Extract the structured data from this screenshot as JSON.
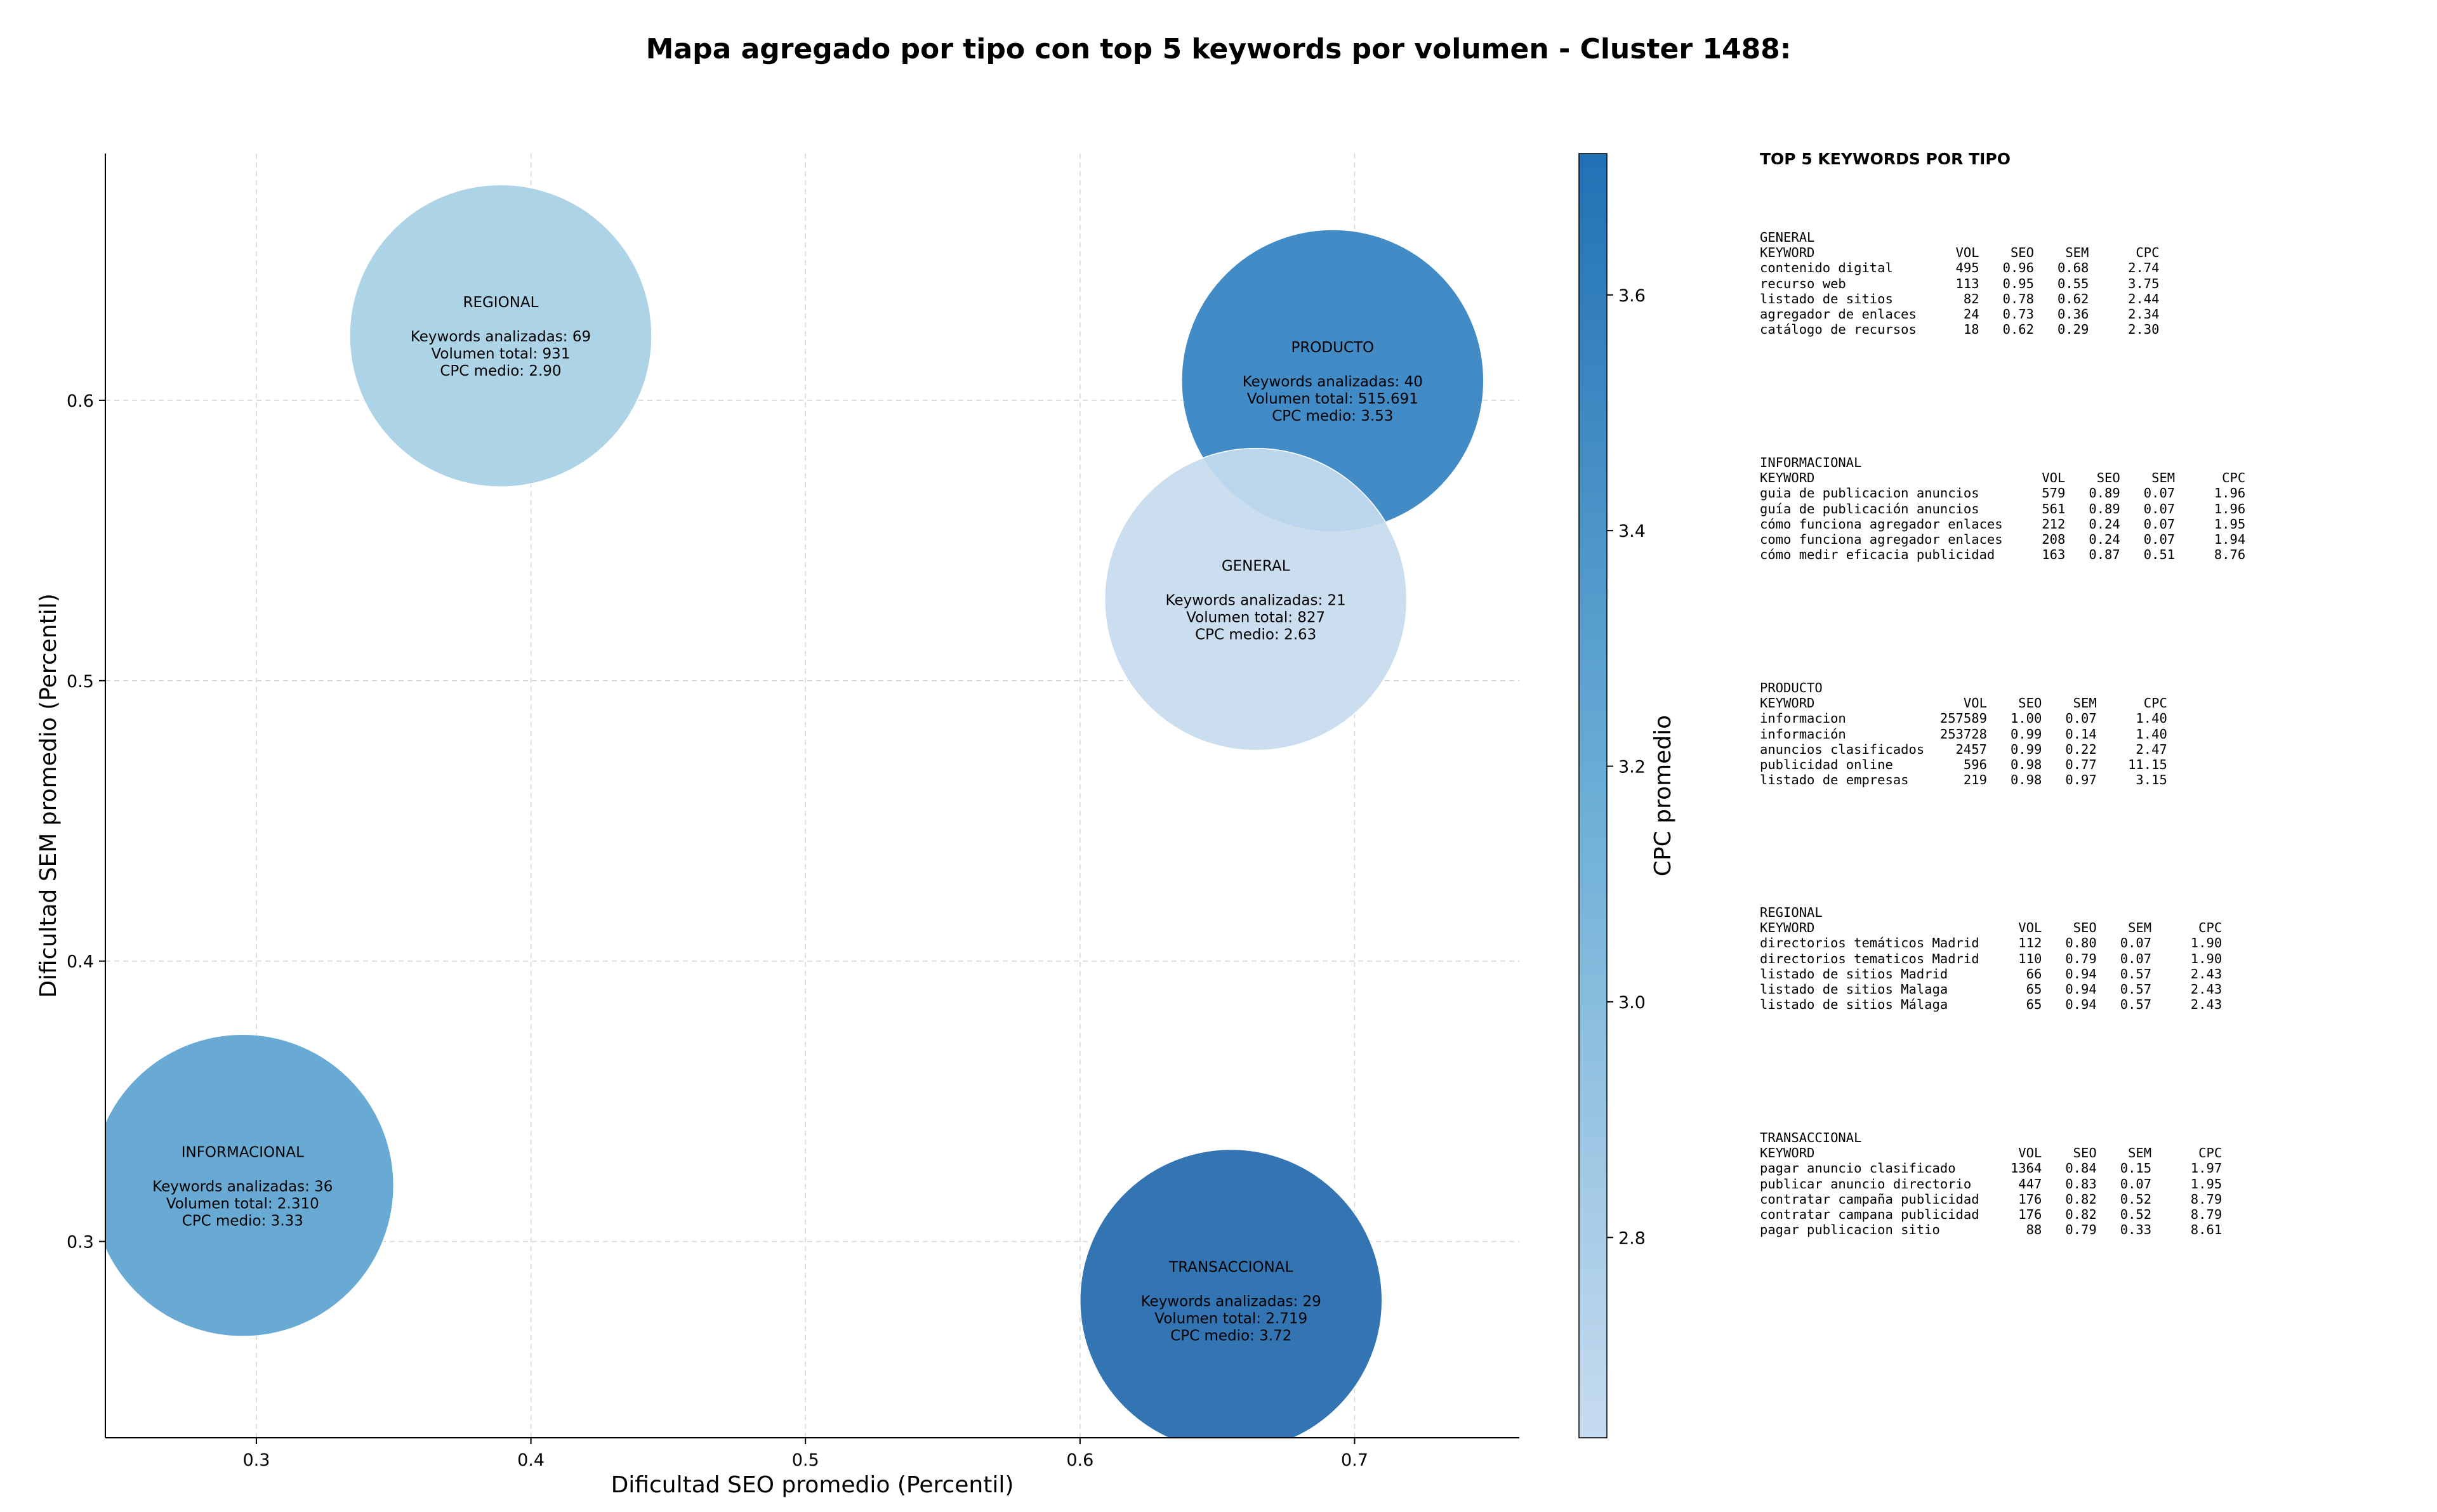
{
  "chart_data": {
    "type": "scatter",
    "title": "Mapa agregado por tipo con top 5 keywords por volumen - Cluster 1488:",
    "xlabel": "Dificultad SEO promedio (Percentil)",
    "ylabel": "Dificultad SEM promedio (Percentil)",
    "xlim": [
      0.245,
      0.76
    ],
    "ylim": [
      0.23,
      0.688
    ],
    "xticks": [
      "0.3",
      "0.4",
      "0.5",
      "0.6",
      "0.7"
    ],
    "yticks": [
      "0.3",
      "0.4",
      "0.5",
      "0.6"
    ],
    "grid": true,
    "colorbar": {
      "label": "CPC promedio",
      "range": [
        2.63,
        3.72
      ],
      "ticks": [
        "2.8",
        "3.0",
        "3.2",
        "3.4",
        "3.6"
      ],
      "colormap": [
        "#c6dbef",
        "#6baed6",
        "#2171b5"
      ]
    },
    "points": [
      {
        "label": "REGIONAL",
        "x": 0.389,
        "y": 0.623,
        "keywords_line": "Keywords analizadas: 69",
        "volume_line": "Volumen total: 931",
        "cpc_line": "CPC medio: 2.90",
        "cpc": 2.9,
        "color": "#a6cfe4"
      },
      {
        "label": "PRODUCTO",
        "x": 0.692,
        "y": 0.607,
        "keywords_line": "Keywords analizadas: 40",
        "volume_line": "Volumen total: 515.691",
        "cpc_line": "CPC medio: 3.53",
        "cpc": 3.53,
        "color": "#3181c2"
      },
      {
        "label": "GENERAL",
        "x": 0.664,
        "y": 0.529,
        "keywords_line": "Keywords analizadas: 21",
        "volume_line": "Volumen total: 827",
        "cpc_line": "CPC medio: 2.63",
        "cpc": 2.63,
        "color": "#c6dbef"
      },
      {
        "label": "INFORMACIONAL",
        "x": 0.295,
        "y": 0.32,
        "keywords_line": "Keywords analizadas: 36",
        "volume_line": "Volumen total: 2.310",
        "cpc_line": "CPC medio: 3.33",
        "cpc": 3.33,
        "color": "#5ba3d0"
      },
      {
        "label": "TRANSACCIONAL",
        "x": 0.655,
        "y": 0.279,
        "keywords_line": "Keywords analizadas: 29",
        "volume_line": "Volumen total: 2.719",
        "cpc_line": "CPC medio: 3.72",
        "cpc": 3.72,
        "color": "#2269ab"
      }
    ]
  },
  "keyword_tables": {
    "title": "TOP 5 KEYWORDS POR TIPO",
    "columns": [
      "KEYWORD",
      "VOL",
      "SEO",
      "SEM",
      "CPC"
    ],
    "groups": [
      {
        "name": "GENERAL",
        "rows": [
          [
            "contenido digital",
            "495",
            "0.96",
            "0.68",
            "2.74"
          ],
          [
            "recurso web",
            "113",
            "0.95",
            "0.55",
            "3.75"
          ],
          [
            "listado de sitios",
            "82",
            "0.78",
            "0.62",
            "2.44"
          ],
          [
            "agregador de enlaces",
            "24",
            "0.73",
            "0.36",
            "2.34"
          ],
          [
            "catálogo de recursos",
            "18",
            "0.62",
            "0.29",
            "2.30"
          ]
        ]
      },
      {
        "name": "INFORMACIONAL",
        "rows": [
          [
            "guia de publicacion anuncios",
            "579",
            "0.89",
            "0.07",
            "1.96"
          ],
          [
            "guía de publicación anuncios",
            "561",
            "0.89",
            "0.07",
            "1.96"
          ],
          [
            "cómo funciona agregador enlaces",
            "212",
            "0.24",
            "0.07",
            "1.95"
          ],
          [
            "como funciona agregador enlaces",
            "208",
            "0.24",
            "0.07",
            "1.94"
          ],
          [
            "cómo medir eficacia publicidad",
            "163",
            "0.87",
            "0.51",
            "8.76"
          ]
        ]
      },
      {
        "name": "PRODUCTO",
        "rows": [
          [
            "informacion",
            "257589",
            "1.00",
            "0.07",
            "1.40"
          ],
          [
            "información",
            "253728",
            "0.99",
            "0.14",
            "1.40"
          ],
          [
            "anuncios clasificados",
            "2457",
            "0.99",
            "0.22",
            "2.47"
          ],
          [
            "publicidad online",
            "596",
            "0.98",
            "0.77",
            "11.15"
          ],
          [
            "listado de empresas",
            "219",
            "0.98",
            "0.97",
            "3.15"
          ]
        ]
      },
      {
        "name": "REGIONAL",
        "rows": [
          [
            "directorios temáticos Madrid",
            "112",
            "0.80",
            "0.07",
            "1.90"
          ],
          [
            "directorios tematicos Madrid",
            "110",
            "0.79",
            "0.07",
            "1.90"
          ],
          [
            "listado de sitios Madrid",
            "66",
            "0.94",
            "0.57",
            "2.43"
          ],
          [
            "listado de sitios Malaga",
            "65",
            "0.94",
            "0.57",
            "2.43"
          ],
          [
            "listado de sitios Málaga",
            "65",
            "0.94",
            "0.57",
            "2.43"
          ]
        ]
      },
      {
        "name": "TRANSACCIONAL",
        "rows": [
          [
            "pagar anuncio clasificado",
            "1364",
            "0.84",
            "0.15",
            "1.97"
          ],
          [
            "publicar anuncio directorio",
            "447",
            "0.83",
            "0.07",
            "1.95"
          ],
          [
            "contratar campaña publicidad",
            "176",
            "0.82",
            "0.52",
            "8.79"
          ],
          [
            "contratar campana publicidad",
            "176",
            "0.82",
            "0.52",
            "8.79"
          ],
          [
            "pagar publicacion sitio",
            "88",
            "0.79",
            "0.33",
            "8.61"
          ]
        ]
      }
    ]
  }
}
